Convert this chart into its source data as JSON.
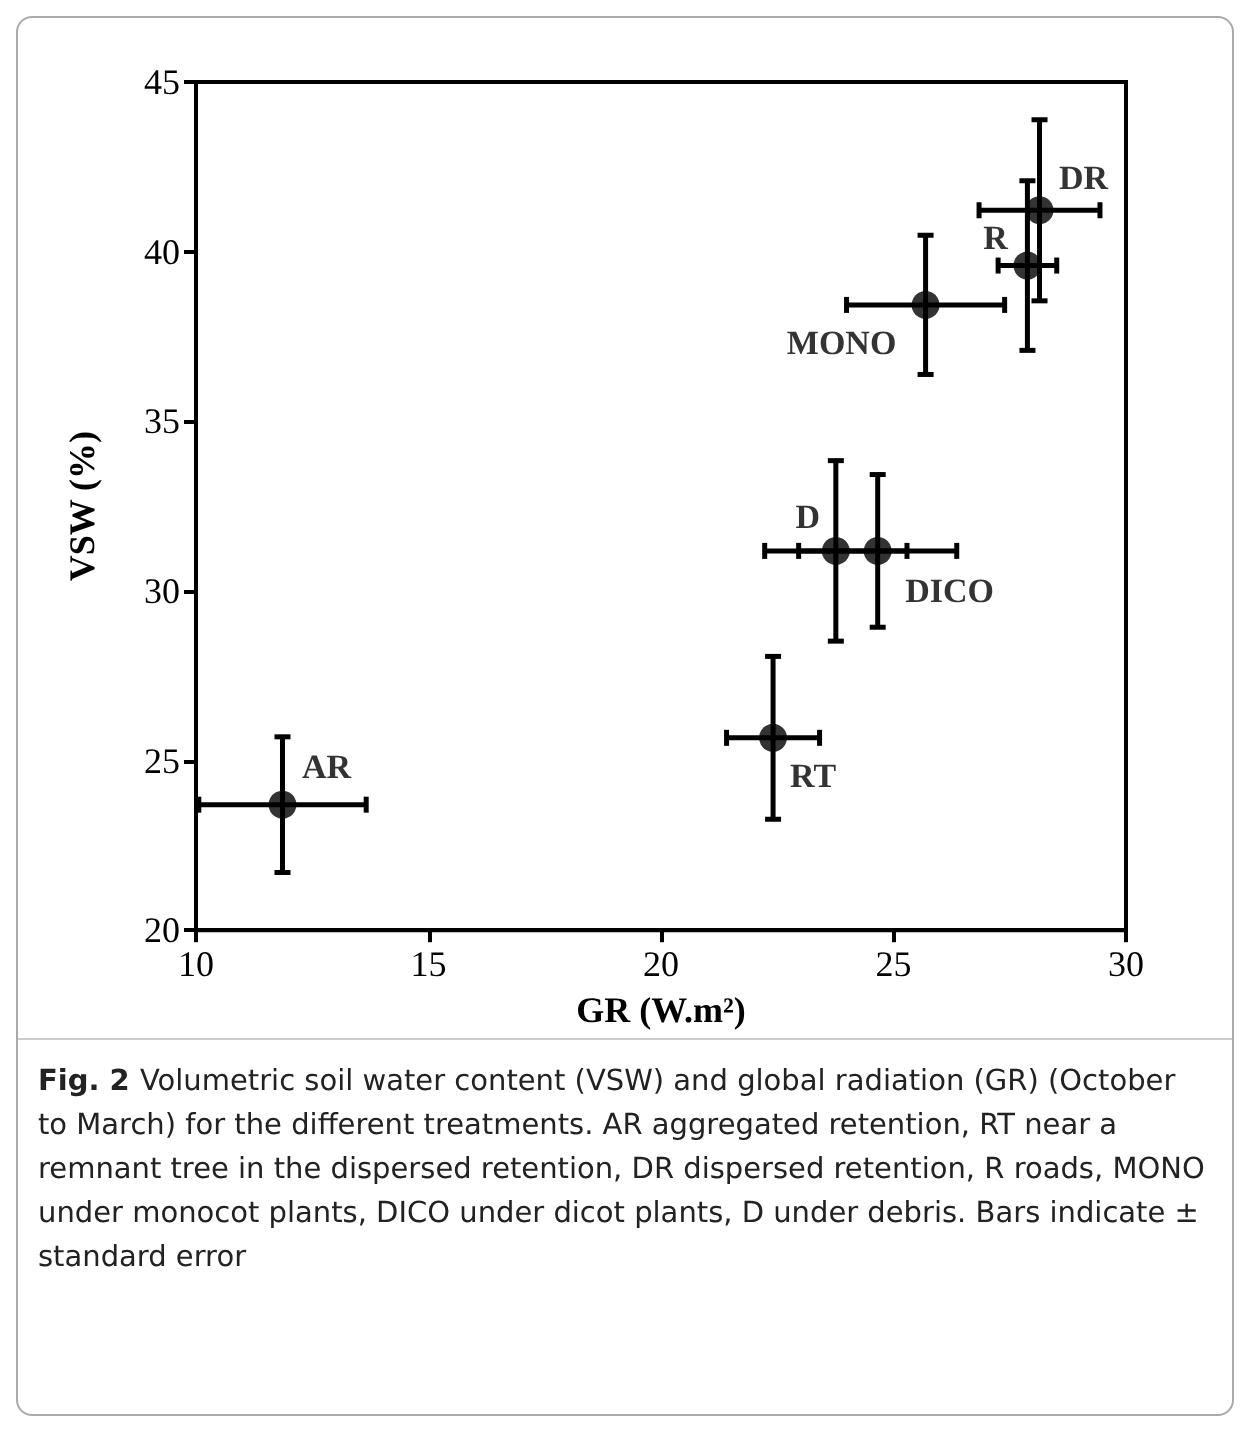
{
  "chart_data": {
    "type": "scatter",
    "xlabel": "GR (W.m²)",
    "ylabel": "VSW (%)",
    "series": [
      {
        "color": "#000000",
        "x": [
          11.86,
          22.41,
          23.76,
          24.66,
          25.69,
          27.88,
          28.14
        ],
        "values": [
          23.7,
          25.67,
          31.18,
          31.18,
          38.43,
          39.59,
          41.22
        ],
        "errors": [
          2.0,
          2.4,
          2.66,
          2.25,
          2.05,
          2.5,
          2.67
        ],
        "xerrors": [
          1.8,
          1.0,
          1.53,
          1.7,
          1.7,
          0.63,
          1.3
        ]
      }
    ],
    "xlim": [
      10,
      30
    ],
    "xticks": [
      10,
      15,
      20,
      25,
      30
    ],
    "ylim": [
      20,
      45
    ],
    "yticks": [
      20,
      25,
      30,
      35,
      40,
      45
    ],
    "grid": false,
    "marker": "circle",
    "annotations": [
      {
        "text": "AR",
        "x": 11.86,
        "y": 23.7
      },
      {
        "text": "RT",
        "x": 22.41,
        "y": 25.67
      },
      {
        "text": "D",
        "x": 23.76,
        "y": 31.18
      },
      {
        "text": "DICO",
        "x": 24.66,
        "y": 31.18
      },
      {
        "text": "MONO",
        "x": 25.69,
        "y": 38.43
      },
      {
        "text": "R",
        "x": 27.88,
        "y": 39.59
      },
      {
        "text": "DR",
        "x": 28.14,
        "y": 41.22
      },
      "Fig. 2",
      "Volumetric soil water content (VSW) and global radiation (GR) (October to March) for the different treatments. AR aggregated retention, RT near a remnant tree in the dispersed retention, DR dispersed retention, R roads, MONO under monocot plants, DICO under dicot plants, D under debris. Bars indicate ± standard error"
    ]
  }
}
